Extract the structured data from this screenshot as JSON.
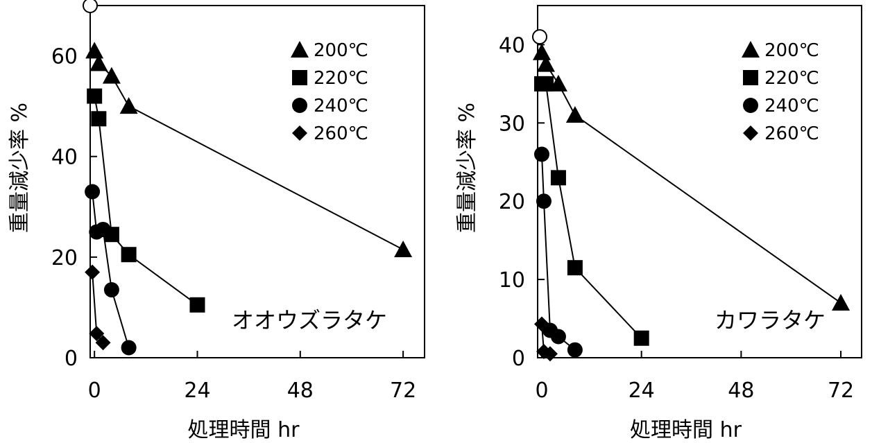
{
  "chart_data": [
    {
      "type": "line",
      "annotation": "オオウズラタケ",
      "xlabel": "処理時間 hr",
      "ylabel": "重量減少率 %",
      "xlim": [
        -1,
        77
      ],
      "ylim": [
        0,
        70
      ],
      "xticks": [
        0,
        24,
        48,
        72
      ],
      "xtick_labels": [
        "0",
        "24",
        "48",
        "72"
      ],
      "yticks": [
        0,
        20,
        40,
        60
      ],
      "ytick_labels": [
        "0",
        "20",
        "40",
        "60"
      ],
      "legend_position": "top-right",
      "initial_point": {
        "x": -1,
        "y": 70,
        "marker": "open-circle"
      },
      "series": [
        {
          "name": "200℃",
          "marker": "triangle",
          "x": [
            0,
            1,
            4,
            8,
            72
          ],
          "y": [
            61,
            58.5,
            56,
            50,
            21.5
          ]
        },
        {
          "name": "220℃",
          "marker": "square",
          "x": [
            0,
            1,
            4,
            8,
            24
          ],
          "y": [
            52,
            47.5,
            24.5,
            20.5,
            10.5
          ]
        },
        {
          "name": "240℃",
          "marker": "circle",
          "x": [
            -0.5,
            0.5,
            2,
            4,
            8
          ],
          "y": [
            33,
            25,
            25.5,
            13.5,
            2
          ]
        },
        {
          "name": "260℃",
          "marker": "diamond",
          "x": [
            -0.5,
            0.5,
            2
          ],
          "y": [
            17,
            4.8,
            3
          ]
        }
      ]
    },
    {
      "type": "line",
      "annotation": "カワラタケ",
      "xlabel": "処理時間 hr",
      "ylabel": "重量減少率 %",
      "xlim": [
        -1,
        77
      ],
      "ylim": [
        0,
        45
      ],
      "xticks": [
        0,
        24,
        48,
        72
      ],
      "xtick_labels": [
        "0",
        "24",
        "48",
        "72"
      ],
      "yticks": [
        0,
        10,
        20,
        30,
        40
      ],
      "ytick_labels": [
        "0",
        "10",
        "20",
        "30",
        "40"
      ],
      "legend_position": "top-right",
      "initial_point": {
        "x": -0.5,
        "y": 41,
        "marker": "open-circle"
      },
      "series": [
        {
          "name": "200℃",
          "marker": "triangle",
          "x": [
            0,
            1,
            4,
            8,
            72
          ],
          "y": [
            39,
            37.5,
            35,
            31,
            7
          ]
        },
        {
          "name": "220℃",
          "marker": "square",
          "x": [
            0,
            1,
            4,
            8,
            24
          ],
          "y": [
            35,
            35,
            23,
            11.5,
            2.5
          ]
        },
        {
          "name": "240℃",
          "marker": "circle",
          "x": [
            0,
            0.5,
            2,
            4,
            8
          ],
          "y": [
            26,
            20,
            3.5,
            2.7,
            1
          ]
        },
        {
          "name": "260℃",
          "marker": "diamond",
          "x": [
            0,
            0.5,
            2
          ],
          "y": [
            4.3,
            0.8,
            0.5
          ]
        }
      ]
    }
  ]
}
